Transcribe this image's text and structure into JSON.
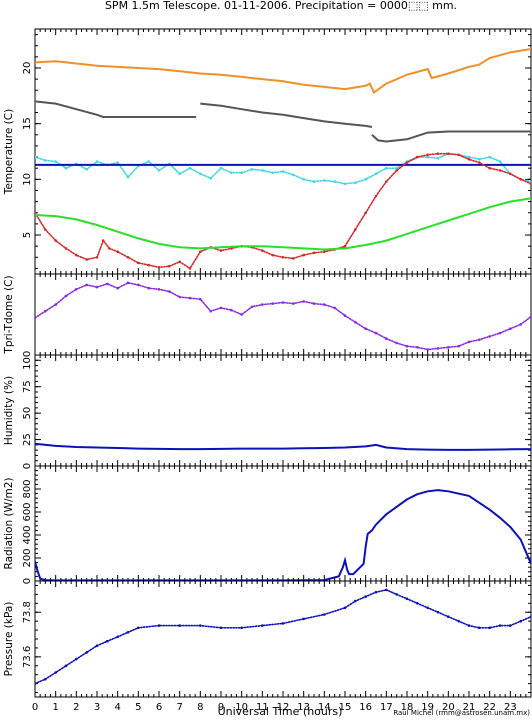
{
  "title": "SPM 1.5m Telescope. 01-11-2006. Precipitation = 0000⬚⬚ mm.",
  "credit": "Raul Michel (rmm@astrosen.unam.mx)",
  "chart_data": {
    "type": "line",
    "xlabel": "Universal Time (hours)",
    "xlim": [
      0,
      24
    ],
    "xticks": [
      0,
      1,
      2,
      3,
      4,
      5,
      6,
      7,
      8,
      9,
      10,
      11,
      12,
      13,
      14,
      15,
      16,
      17,
      18,
      19,
      20,
      21,
      22,
      23
    ],
    "panels": [
      {
        "ylabel": "Temperature (C)",
        "ylim": [
          1.5,
          23.5
        ],
        "yticks": [
          5,
          10,
          15,
          20
        ],
        "series": [
          {
            "color": "#f0902a",
            "style": "line",
            "x": [
              0,
              1,
              2,
              3,
              4,
              5,
              6,
              7,
              8,
              9,
              10,
              11,
              12,
              13,
              14,
              15,
              16,
              16.2,
              16.4,
              17,
              18,
              19,
              19.2,
              20,
              21,
              21.5,
              22,
              23,
              24
            ],
            "y": [
              20.5,
              20.6,
              20.4,
              20.2,
              20.1,
              20.0,
              19.9,
              19.7,
              19.5,
              19.4,
              19.2,
              19.0,
              18.8,
              18.5,
              18.3,
              18.1,
              18.4,
              18.6,
              17.8,
              18.6,
              19.4,
              19.9,
              19.1,
              19.5,
              20.1,
              20.3,
              20.9,
              21.4,
              21.7
            ]
          },
          {
            "color": "#555555",
            "style": "line",
            "x": [
              0,
              1,
              2,
              3,
              3.3,
              7.8
            ],
            "y": [
              17.0,
              16.8,
              16.3,
              15.8,
              15.6,
              15.6
            ]
          },
          {
            "color": "#555555",
            "style": "line",
            "x": [
              8.0,
              9,
              10,
              11,
              12,
              13,
              14,
              15,
              16,
              16.3
            ],
            "y": [
              16.8,
              16.6,
              16.3,
              16.0,
              15.8,
              15.5,
              15.2,
              15.0,
              14.8,
              14.7
            ]
          },
          {
            "color": "#555555",
            "style": "line",
            "x": [
              16.3,
              16.6,
              17,
              18,
              19,
              20,
              21,
              22,
              23,
              24
            ],
            "y": [
              14.0,
              13.5,
              13.4,
              13.6,
              14.2,
              14.3,
              14.3,
              14.3,
              14.3,
              14.3
            ]
          },
          {
            "color": "#3bd9e8",
            "style": "points",
            "x": [
              0,
              0.5,
              1,
              1.5,
              2,
              2.5,
              3,
              3.5,
              4,
              4.5,
              5,
              5.5,
              6,
              6.5,
              7,
              7.5,
              8,
              8.5,
              9,
              9.5,
              10,
              10.5,
              11,
              11.5,
              12,
              12.5,
              13,
              13.5,
              14,
              14.5,
              15,
              15.5,
              16,
              16.5,
              17,
              17.5,
              18,
              18.5,
              19,
              19.5,
              20,
              20.5,
              21,
              21.5,
              22,
              22.5,
              23,
              23.5,
              24
            ],
            "y": [
              12.0,
              11.7,
              11.6,
              11.0,
              11.4,
              10.9,
              11.6,
              11.3,
              11.5,
              10.2,
              11.2,
              11.6,
              10.8,
              11.4,
              10.5,
              11.0,
              10.5,
              10.1,
              11.0,
              10.6,
              10.6,
              10.9,
              10.8,
              10.6,
              10.7,
              10.4,
              10.0,
              9.8,
              9.9,
              9.8,
              9.6,
              9.7,
              10.0,
              10.5,
              11.0,
              11.0,
              11.6,
              12.0,
              12.0,
              11.9,
              12.3,
              12.2,
              12.0,
              11.8,
              12.0,
              11.6,
              10.5,
              10.0,
              9.8
            ]
          },
          {
            "color": "#0c12b8",
            "style": "line",
            "x": [
              0,
              24
            ],
            "y": [
              11.3,
              11.3
            ]
          },
          {
            "color": "#d42a2a",
            "style": "points",
            "x": [
              0,
              0.5,
              1,
              1.5,
              2,
              2.5,
              3,
              3.3,
              3.6,
              4,
              4.5,
              5,
              5.5,
              6,
              6.5,
              7,
              7.5,
              8,
              8.5,
              9,
              9.5,
              10,
              10.5,
              11,
              11.5,
              12,
              12.5,
              13,
              13.5,
              14,
              14.5,
              15,
              15.5,
              16,
              16.5,
              17,
              17.5,
              18,
              18.5,
              19,
              19.5,
              20,
              20.5,
              21,
              21.5,
              22,
              22.5,
              23,
              23.5,
              24
            ],
            "y": [
              7.0,
              5.5,
              4.5,
              3.8,
              3.2,
              2.8,
              3.0,
              4.5,
              3.8,
              3.5,
              3.0,
              2.5,
              2.3,
              2.1,
              2.2,
              2.6,
              2.0,
              3.5,
              3.9,
              3.6,
              3.8,
              4.0,
              3.9,
              3.6,
              3.2,
              3.0,
              2.9,
              3.2,
              3.4,
              3.5,
              3.7,
              4.0,
              5.5,
              7.0,
              8.5,
              9.8,
              10.8,
              11.5,
              12.0,
              12.2,
              12.3,
              12.3,
              12.2,
              11.8,
              11.5,
              11.0,
              10.8,
              10.5,
              10.0,
              9.6
            ]
          },
          {
            "color": "#2adf2a",
            "style": "line",
            "x": [
              0,
              1,
              2,
              3,
              4,
              5,
              6,
              7,
              8,
              9,
              10,
              11,
              12,
              13,
              14,
              15,
              16,
              17,
              18,
              19,
              20,
              21,
              22,
              23,
              24
            ],
            "y": [
              6.8,
              6.7,
              6.4,
              5.9,
              5.3,
              4.7,
              4.2,
              3.9,
              3.8,
              3.9,
              4.0,
              4.0,
              3.9,
              3.8,
              3.7,
              3.8,
              4.1,
              4.5,
              5.1,
              5.7,
              6.3,
              6.9,
              7.5,
              8.0,
              8.3
            ]
          }
        ]
      },
      {
        "ylabel": "Tpri-Tdome (C)",
        "ylim": [
          -3.8,
          3.6
        ],
        "yticks": [],
        "series": [
          {
            "color": "#8a2be2",
            "style": "points",
            "x": [
              0,
              0.5,
              1,
              1.5,
              2,
              2.5,
              3,
              3.5,
              4,
              4.5,
              5,
              5.5,
              6,
              6.5,
              7,
              7.5,
              8,
              8.5,
              9,
              9.5,
              10,
              10.5,
              11,
              11.5,
              12,
              12.5,
              13,
              13.5,
              14,
              14.5,
              15,
              15.5,
              16,
              16.5,
              17,
              17.5,
              18,
              18.5,
              19,
              19.5,
              20,
              20.5,
              21,
              21.5,
              22,
              22.5,
              23,
              23.5,
              24
            ],
            "y": [
              -0.4,
              0.2,
              0.8,
              1.6,
              2.2,
              2.6,
              2.4,
              2.7,
              2.3,
              2.8,
              2.6,
              2.3,
              2.2,
              2.0,
              1.5,
              1.4,
              1.3,
              0.2,
              0.5,
              0.3,
              -0.1,
              0.6,
              0.8,
              0.9,
              1.0,
              0.9,
              1.1,
              0.9,
              0.8,
              0.5,
              -0.2,
              -0.8,
              -1.4,
              -1.8,
              -2.3,
              -2.7,
              -3.0,
              -3.1,
              -3.3,
              -3.2,
              -3.1,
              -3.0,
              -2.6,
              -2.4,
              -2.1,
              -1.8,
              -1.4,
              -1.0,
              -0.3
            ]
          }
        ]
      },
      {
        "ylabel": "Humidity (%)",
        "ylim": [
          0,
          105
        ],
        "yticks": [
          0,
          25,
          50,
          75,
          100
        ],
        "series": [
          {
            "color": "#0c12b8",
            "style": "line",
            "x": [
              0,
              1,
              2,
              3,
              4,
              5,
              6,
              7,
              8,
              9,
              10,
              11,
              12,
              13,
              14,
              15,
              16,
              16.5,
              17,
              18,
              19,
              20,
              21,
              22,
              23,
              24
            ],
            "y": [
              21,
              19,
              18,
              17.5,
              17,
              16.5,
              16.2,
              16,
              16,
              16.2,
              16.5,
              16.5,
              16.5,
              16.8,
              17,
              17.5,
              18.5,
              20,
              17.5,
              16,
              15.5,
              15.2,
              15.2,
              15.5,
              15.8,
              16
            ]
          }
        ]
      },
      {
        "ylabel": "Radiation (W/m2)",
        "ylim": [
          0,
          1000
        ],
        "yticks": [
          0,
          200,
          400,
          600,
          800
        ],
        "series": [
          {
            "color": "#0c12b8",
            "style": "line",
            "x": [
              0,
              0.1,
              0.25,
              0.5,
              1,
              2,
              4,
              6,
              8,
              10,
              12,
              14,
              14.7,
              14.9,
              15.0,
              15.1,
              15.2,
              15.4,
              15.9,
              16.0,
              16.1,
              16.3,
              16.5,
              17,
              18,
              18.5,
              19,
              19.5,
              20,
              21,
              22,
              22.5,
              23,
              23.5,
              24
            ],
            "y": [
              170,
              100,
              20,
              8,
              5,
              5,
              5,
              5,
              5,
              5,
              5,
              8,
              40,
              120,
              180,
              100,
              60,
              60,
              150,
              300,
              410,
              440,
              490,
              580,
              710,
              755,
              780,
              790,
              780,
              740,
              620,
              550,
              470,
              360,
              150
            ]
          }
        ]
      },
      {
        "ylabel": "Pressure (kPa)",
        "ylim": [
          73.42,
          73.94
        ],
        "yticks": [
          73.6,
          73.8
        ],
        "series": [
          {
            "color": "#0c12b8",
            "style": "points",
            "x": [
              0,
              0.5,
              1,
              1.5,
              2,
              2.5,
              3,
              3.5,
              4,
              4.5,
              5,
              6,
              7,
              8,
              9,
              10,
              11,
              12,
              13,
              14,
              15,
              15.5,
              16,
              16.5,
              17,
              17.5,
              18,
              18.5,
              19,
              19.5,
              20,
              20.5,
              21,
              21.5,
              22,
              22.5,
              23,
              23.5,
              24
            ],
            "y": [
              73.48,
              73.5,
              73.53,
              73.56,
              73.59,
              73.62,
              73.65,
              73.67,
              73.69,
              73.71,
              73.73,
              73.74,
              73.74,
              73.74,
              73.73,
              73.73,
              73.74,
              73.75,
              73.77,
              73.79,
              73.82,
              73.85,
              73.87,
              73.89,
              73.9,
              73.88,
              73.86,
              73.84,
              73.82,
              73.8,
              73.78,
              73.76,
              73.74,
              73.73,
              73.73,
              73.74,
              73.74,
              73.76,
              73.78
            ]
          }
        ]
      }
    ]
  }
}
